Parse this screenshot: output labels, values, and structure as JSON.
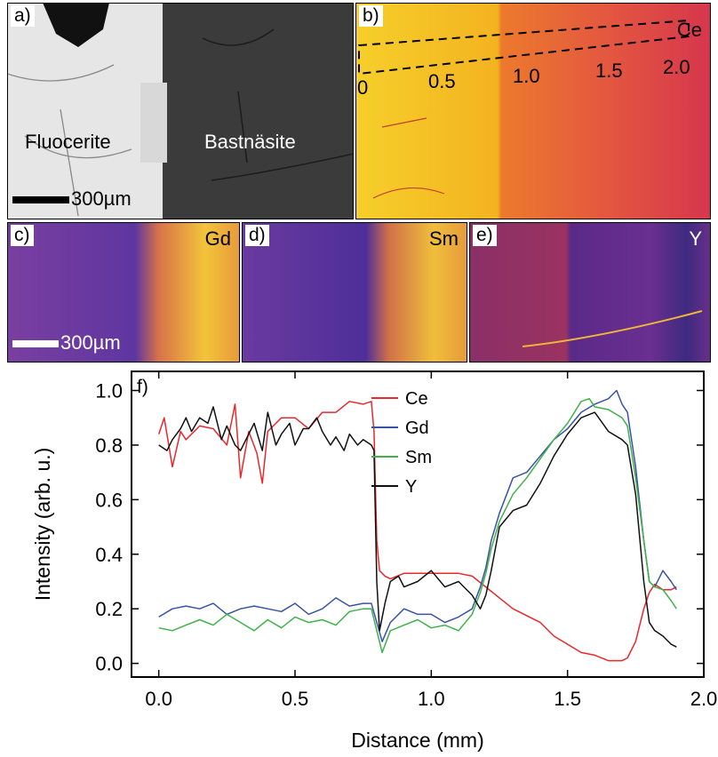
{
  "panels": {
    "a": {
      "label": "a)",
      "left_text": "Fluocerite",
      "right_text": "Bastnäsite",
      "scale_text": "300µm"
    },
    "b": {
      "label": "b)",
      "element": "Ce",
      "ticks": [
        "0",
        "0.5",
        "1.0",
        "1.5",
        "2.0"
      ]
    },
    "c": {
      "label": "c)",
      "element": "Gd",
      "scale_text": "300µm"
    },
    "d": {
      "label": "d)",
      "element": "Sm"
    },
    "e": {
      "label": "e)",
      "element": "Y"
    }
  },
  "chart_data": {
    "type": "line",
    "panel_label": "f)",
    "xlabel": "Distance (mm)",
    "ylabel": "Intensity (arb. u.)",
    "xlim": [
      -0.1,
      2.0
    ],
    "ylim": [
      -0.05,
      1.07
    ],
    "xticks": [
      0.0,
      0.5,
      1.0,
      1.5,
      2.0
    ],
    "xtick_labels": [
      "0.0",
      "0.5",
      "1.0",
      "1.5",
      "2.0"
    ],
    "yticks": [
      0.0,
      0.2,
      0.4,
      0.6,
      0.8,
      1.0
    ],
    "ytick_labels": [
      "0.0",
      "0.2",
      "0.4",
      "0.6",
      "0.8",
      "1.0"
    ],
    "legend_position": "top-right",
    "series": [
      {
        "name": "Ce",
        "color": "#e8282b",
        "x": [
          0,
          0.02,
          0.05,
          0.08,
          0.1,
          0.15,
          0.2,
          0.25,
          0.28,
          0.3,
          0.33,
          0.36,
          0.38,
          0.4,
          0.45,
          0.5,
          0.55,
          0.6,
          0.65,
          0.7,
          0.75,
          0.78,
          0.79,
          0.8,
          0.81,
          0.83,
          0.85,
          0.9,
          1.0,
          1.1,
          1.15,
          1.2,
          1.25,
          1.3,
          1.4,
          1.45,
          1.5,
          1.55,
          1.6,
          1.65,
          1.7,
          1.72,
          1.75,
          1.78,
          1.8,
          1.82,
          1.85,
          1.88,
          1.9
        ],
        "y": [
          0.84,
          0.9,
          0.72,
          0.85,
          0.82,
          0.87,
          0.86,
          0.8,
          0.95,
          0.68,
          0.85,
          0.77,
          0.66,
          0.85,
          0.9,
          0.9,
          0.86,
          0.92,
          0.92,
          0.96,
          0.95,
          0.96,
          0.85,
          0.45,
          0.34,
          0.32,
          0.31,
          0.33,
          0.33,
          0.33,
          0.32,
          0.28,
          0.24,
          0.2,
          0.15,
          0.1,
          0.07,
          0.04,
          0.03,
          0.01,
          0.01,
          0.02,
          0.08,
          0.2,
          0.26,
          0.29,
          0.27,
          0.27,
          0.28
        ]
      },
      {
        "name": "Gd",
        "color": "#3953a4",
        "x": [
          0,
          0.05,
          0.1,
          0.15,
          0.2,
          0.25,
          0.3,
          0.35,
          0.4,
          0.45,
          0.5,
          0.55,
          0.6,
          0.65,
          0.7,
          0.75,
          0.78,
          0.8,
          0.82,
          0.85,
          0.9,
          0.95,
          1.0,
          1.05,
          1.1,
          1.15,
          1.18,
          1.2,
          1.22,
          1.25,
          1.3,
          1.35,
          1.4,
          1.45,
          1.5,
          1.55,
          1.6,
          1.65,
          1.68,
          1.7,
          1.72,
          1.75,
          1.78,
          1.8,
          1.82,
          1.85,
          1.88,
          1.9
        ],
        "y": [
          0.17,
          0.2,
          0.21,
          0.2,
          0.22,
          0.18,
          0.2,
          0.21,
          0.2,
          0.19,
          0.22,
          0.18,
          0.2,
          0.24,
          0.21,
          0.22,
          0.22,
          0.15,
          0.08,
          0.15,
          0.2,
          0.18,
          0.18,
          0.15,
          0.17,
          0.2,
          0.28,
          0.35,
          0.45,
          0.55,
          0.68,
          0.7,
          0.76,
          0.82,
          0.86,
          0.92,
          0.95,
          0.97,
          1.0,
          0.95,
          0.92,
          0.72,
          0.45,
          0.3,
          0.28,
          0.34,
          0.3,
          0.27
        ]
      },
      {
        "name": "Sm",
        "color": "#3fb24a",
        "x": [
          0,
          0.05,
          0.1,
          0.15,
          0.2,
          0.25,
          0.3,
          0.35,
          0.4,
          0.45,
          0.5,
          0.55,
          0.6,
          0.65,
          0.7,
          0.75,
          0.78,
          0.8,
          0.82,
          0.85,
          0.9,
          0.95,
          1.0,
          1.05,
          1.1,
          1.15,
          1.18,
          1.2,
          1.22,
          1.25,
          1.3,
          1.35,
          1.4,
          1.45,
          1.5,
          1.55,
          1.58,
          1.6,
          1.65,
          1.7,
          1.72,
          1.75,
          1.78,
          1.8,
          1.82,
          1.85,
          1.88,
          1.9
        ],
        "y": [
          0.13,
          0.12,
          0.14,
          0.16,
          0.14,
          0.18,
          0.15,
          0.12,
          0.16,
          0.13,
          0.17,
          0.15,
          0.16,
          0.14,
          0.19,
          0.2,
          0.2,
          0.12,
          0.04,
          0.12,
          0.14,
          0.16,
          0.13,
          0.14,
          0.12,
          0.18,
          0.26,
          0.33,
          0.42,
          0.52,
          0.62,
          0.68,
          0.75,
          0.82,
          0.88,
          0.96,
          0.97,
          0.94,
          0.93,
          0.9,
          0.87,
          0.68,
          0.45,
          0.3,
          0.28,
          0.27,
          0.23,
          0.2
        ]
      },
      {
        "name": "Y",
        "color": "#111111",
        "x": [
          0,
          0.03,
          0.05,
          0.08,
          0.1,
          0.12,
          0.15,
          0.18,
          0.2,
          0.23,
          0.25,
          0.28,
          0.3,
          0.33,
          0.35,
          0.38,
          0.4,
          0.43,
          0.45,
          0.48,
          0.5,
          0.53,
          0.55,
          0.58,
          0.6,
          0.63,
          0.65,
          0.68,
          0.7,
          0.73,
          0.75,
          0.78,
          0.79,
          0.8,
          0.81,
          0.83,
          0.85,
          0.88,
          0.9,
          0.95,
          1.0,
          1.05,
          1.1,
          1.15,
          1.18,
          1.2,
          1.22,
          1.25,
          1.3,
          1.35,
          1.4,
          1.45,
          1.5,
          1.55,
          1.6,
          1.65,
          1.7,
          1.72,
          1.75,
          1.78,
          1.8,
          1.82,
          1.85,
          1.88,
          1.9
        ],
        "y": [
          0.8,
          0.78,
          0.82,
          0.86,
          0.9,
          0.85,
          0.9,
          0.88,
          0.94,
          0.82,
          0.87,
          0.8,
          0.78,
          0.84,
          0.88,
          0.78,
          0.92,
          0.8,
          0.84,
          0.88,
          0.8,
          0.86,
          0.86,
          0.9,
          0.85,
          0.8,
          0.83,
          0.78,
          0.84,
          0.8,
          0.82,
          0.8,
          0.78,
          0.3,
          0.12,
          0.22,
          0.3,
          0.32,
          0.28,
          0.3,
          0.34,
          0.28,
          0.3,
          0.25,
          0.2,
          0.25,
          0.34,
          0.5,
          0.56,
          0.58,
          0.66,
          0.76,
          0.84,
          0.9,
          0.92,
          0.85,
          0.82,
          0.8,
          0.62,
          0.3,
          0.15,
          0.12,
          0.1,
          0.07,
          0.06
        ]
      }
    ]
  }
}
